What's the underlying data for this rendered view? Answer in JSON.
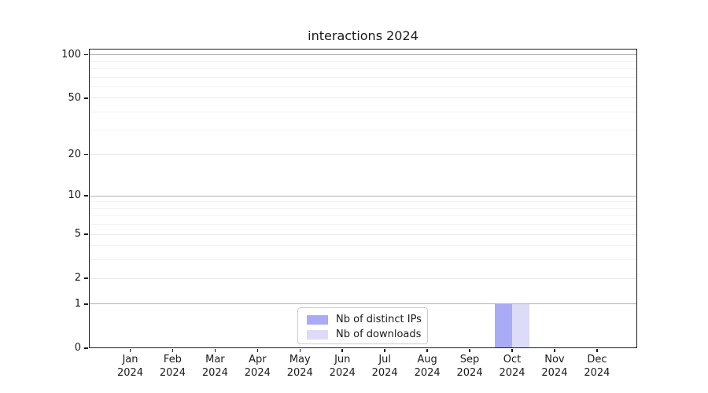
{
  "chart_data": {
    "type": "bar",
    "title": "interactions 2024",
    "x_axis": {
      "months": [
        "Jan",
        "Feb",
        "Mar",
        "Apr",
        "May",
        "Jun",
        "Jul",
        "Aug",
        "Sep",
        "Oct",
        "Nov",
        "Dec"
      ],
      "year": "2024"
    },
    "series": [
      {
        "name": "Nb of distinct IPs",
        "color": "#aaabf7",
        "values": [
          0,
          0,
          0,
          0,
          0,
          0,
          0,
          0,
          0,
          1,
          0,
          0
        ]
      },
      {
        "name": "Nb of downloads",
        "color": "#dcdcf9",
        "values": [
          0,
          0,
          0,
          0,
          0,
          0,
          0,
          0,
          0,
          1,
          0,
          0
        ]
      }
    ],
    "y_axis": {
      "scale": "log1p",
      "ticks": [
        0,
        1,
        2,
        5,
        10,
        20,
        50,
        100
      ],
      "tick_labels": [
        "0",
        "1",
        "2",
        "5",
        "10",
        "20",
        "50",
        "100"
      ],
      "ylim": [
        0,
        110
      ],
      "grid": {
        "major": [
          1,
          10,
          100
        ],
        "semi": [
          2,
          5,
          20,
          50
        ],
        "minor": [
          3,
          4,
          6,
          7,
          8,
          9,
          30,
          40,
          60,
          70,
          80,
          90
        ]
      }
    },
    "legend": {
      "position": "bottom-center"
    }
  },
  "colors": {
    "background": "#ffffff",
    "bar_distinct_ips": "#aaabf7",
    "bar_downloads": "#dcdcf9",
    "grid_major": "#b3b3b3",
    "grid_semi": "#e9e9e9",
    "grid_minor": "#f3f3f3",
    "spine": "#1c1c1c",
    "text": "#1a1a1a",
    "legend_border": "#cccccc"
  }
}
